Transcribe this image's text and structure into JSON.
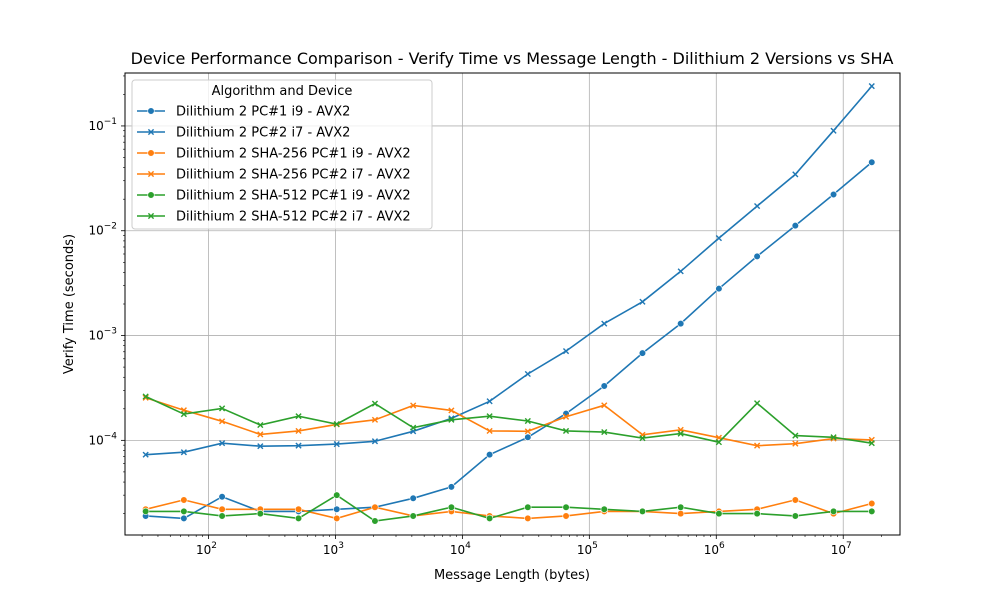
{
  "chart_data": {
    "type": "line",
    "title": "Device Performance Comparison - Verify Time vs Message Length - Dilithium 2 Versions vs SHA",
    "xlabel": "Message Length (bytes)",
    "ylabel": "Verify Time (seconds)",
    "x_scale": "log",
    "y_scale": "log",
    "xlim": [
      22,
      28000000
    ],
    "ylim": [
      1.25e-05,
      0.32
    ],
    "grid": true,
    "legend": {
      "title": "Algorithm and Device",
      "placement": "top-left"
    },
    "x_ticks": [
      {
        "value": 100,
        "base": "10",
        "exp": "2"
      },
      {
        "value": 1000,
        "base": "10",
        "exp": "3"
      },
      {
        "value": 10000,
        "base": "10",
        "exp": "4"
      },
      {
        "value": 100000,
        "base": "10",
        "exp": "5"
      },
      {
        "value": 1000000,
        "base": "10",
        "exp": "6"
      },
      {
        "value": 10000000,
        "base": "10",
        "exp": "7"
      }
    ],
    "y_ticks": [
      {
        "value": 0.0001,
        "base": "10",
        "exp": "−4"
      },
      {
        "value": 0.001,
        "base": "10",
        "exp": "−3"
      },
      {
        "value": 0.01,
        "base": "10",
        "exp": "−2"
      },
      {
        "value": 0.1,
        "base": "10",
        "exp": "−1"
      }
    ],
    "x": [
      32,
      64,
      128,
      256,
      512,
      1024,
      2048,
      4096,
      8192,
      16384,
      32768,
      65536,
      131072,
      262144,
      524288,
      1048576,
      2097152,
      4194304,
      8388608,
      16777216
    ],
    "series": [
      {
        "name": "Dilithium 2 PC#1 i9 - AVX2",
        "color": "#1f77b4",
        "marker": "circle",
        "values": [
          1.9e-05,
          1.8e-05,
          2.9e-05,
          2.1e-05,
          2.1e-05,
          2.2e-05,
          2.3e-05,
          2.8e-05,
          3.6e-05,
          7.3e-05,
          0.000107,
          0.00018,
          0.00033,
          0.00068,
          0.0013,
          0.0028,
          0.0057,
          0.0112,
          0.0222,
          0.045
        ]
      },
      {
        "name": "Dilithium 2 PC#2 i7 - AVX2",
        "color": "#1f77b4",
        "marker": "x",
        "values": [
          7.3e-05,
          7.7e-05,
          9.4e-05,
          8.8e-05,
          8.9e-05,
          9.2e-05,
          9.8e-05,
          0.000122,
          0.000162,
          0.000236,
          0.00043,
          0.00071,
          0.0013,
          0.0021,
          0.0041,
          0.0085,
          0.0172,
          0.0345,
          0.09,
          0.24
        ]
      },
      {
        "name": "Dilithium 2 SHA-256 PC#1 i9 - AVX2",
        "color": "#ff7f0e",
        "marker": "circle",
        "values": [
          2.2e-05,
          2.7e-05,
          2.2e-05,
          2.2e-05,
          2.2e-05,
          1.8e-05,
          2.3e-05,
          1.9e-05,
          2.1e-05,
          1.9e-05,
          1.8e-05,
          1.9e-05,
          2.1e-05,
          2.1e-05,
          2e-05,
          2.1e-05,
          2.2e-05,
          2.7e-05,
          2e-05,
          2.5e-05
        ]
      },
      {
        "name": "Dilithium 2 SHA-256 PC#2 i7 - AVX2",
        "color": "#ff7f0e",
        "marker": "x",
        "values": [
          0.000255,
          0.000194,
          0.000152,
          0.000114,
          0.000123,
          0.000142,
          0.000157,
          0.000215,
          0.000193,
          0.000123,
          0.000122,
          0.000168,
          0.000216,
          0.000113,
          0.000126,
          0.000106,
          8.9e-05,
          9.3e-05,
          0.000104,
          0.000101
        ]
      },
      {
        "name": "Dilithium 2 SHA-512 PC#1 i9 - AVX2",
        "color": "#2ca02c",
        "marker": "circle",
        "values": [
          2.1e-05,
          2.1e-05,
          1.9e-05,
          2e-05,
          1.8e-05,
          3e-05,
          1.7e-05,
          1.9e-05,
          2.3e-05,
          1.8e-05,
          2.3e-05,
          2.3e-05,
          2.2e-05,
          2.1e-05,
          2.3e-05,
          2e-05,
          2e-05,
          1.9e-05,
          2.1e-05,
          2.1e-05
        ]
      },
      {
        "name": "Dilithium 2 SHA-512 PC#2 i7 - AVX2",
        "color": "#2ca02c",
        "marker": "x",
        "values": [
          0.000262,
          0.000178,
          0.000202,
          0.00014,
          0.00017,
          0.000143,
          0.000224,
          0.000132,
          0.000157,
          0.00017,
          0.000153,
          0.000123,
          0.00012,
          0.000105,
          0.000116,
          9.6e-05,
          0.000226,
          0.000111,
          0.000107,
          9.4e-05
        ]
      }
    ]
  }
}
